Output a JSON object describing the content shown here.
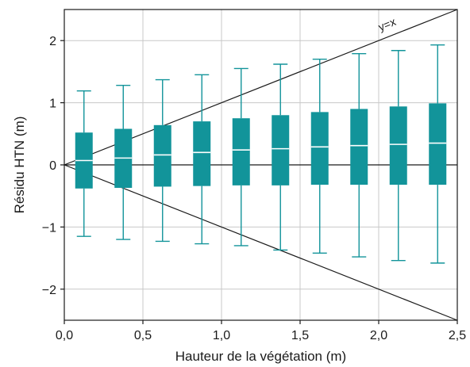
{
  "chart_data": {
    "type": "box",
    "xlabel": "Hauteur de la végétation (m)",
    "ylabel": "Résidu HTN (m)",
    "xlim": [
      0,
      2.5
    ],
    "ylim": [
      -2.5,
      2.5
    ],
    "xticks": [
      0,
      0.5,
      1.0,
      1.5,
      2.0,
      2.5
    ],
    "xtick_labels": [
      "0,0",
      "0,5",
      "1,0",
      "1,5",
      "2,0",
      "2,5"
    ],
    "yticks": [
      -2,
      -1,
      0,
      1,
      2
    ],
    "ytick_labels": [
      "−2",
      "−1",
      "0",
      "1",
      "2"
    ],
    "grid": true,
    "box_color": "#12949a",
    "median_color": "#ffffff",
    "boxes": [
      {
        "x": 0.125,
        "whisker_low": -1.15,
        "q1": -0.38,
        "median": 0.07,
        "q3": 0.52,
        "whisker_high": 1.19
      },
      {
        "x": 0.375,
        "whisker_low": -1.2,
        "q1": -0.37,
        "median": 0.11,
        "q3": 0.58,
        "whisker_high": 1.28
      },
      {
        "x": 0.625,
        "whisker_low": -1.23,
        "q1": -0.35,
        "median": 0.16,
        "q3": 0.64,
        "whisker_high": 1.37
      },
      {
        "x": 0.875,
        "whisker_low": -1.27,
        "q1": -0.34,
        "median": 0.2,
        "q3": 0.7,
        "whisker_high": 1.45
      },
      {
        "x": 1.125,
        "whisker_low": -1.3,
        "q1": -0.33,
        "median": 0.24,
        "q3": 0.75,
        "whisker_high": 1.55
      },
      {
        "x": 1.375,
        "whisker_low": -1.37,
        "q1": -0.33,
        "median": 0.26,
        "q3": 0.8,
        "whisker_high": 1.62
      },
      {
        "x": 1.625,
        "whisker_low": -1.42,
        "q1": -0.32,
        "median": 0.29,
        "q3": 0.85,
        "whisker_high": 1.7
      },
      {
        "x": 1.875,
        "whisker_low": -1.48,
        "q1": -0.32,
        "median": 0.31,
        "q3": 0.9,
        "whisker_high": 1.79
      },
      {
        "x": 2.125,
        "whisker_low": -1.54,
        "q1": -0.32,
        "median": 0.33,
        "q3": 0.94,
        "whisker_high": 1.84
      },
      {
        "x": 2.375,
        "whisker_low": -1.58,
        "q1": -0.32,
        "median": 0.35,
        "q3": 0.99,
        "whisker_high": 1.93
      }
    ],
    "reference_lines": [
      {
        "label": "y=x",
        "slope": 1
      },
      {
        "label": "",
        "slope": -1
      },
      {
        "label": "",
        "slope": 0
      }
    ],
    "annotation": "y=x"
  }
}
